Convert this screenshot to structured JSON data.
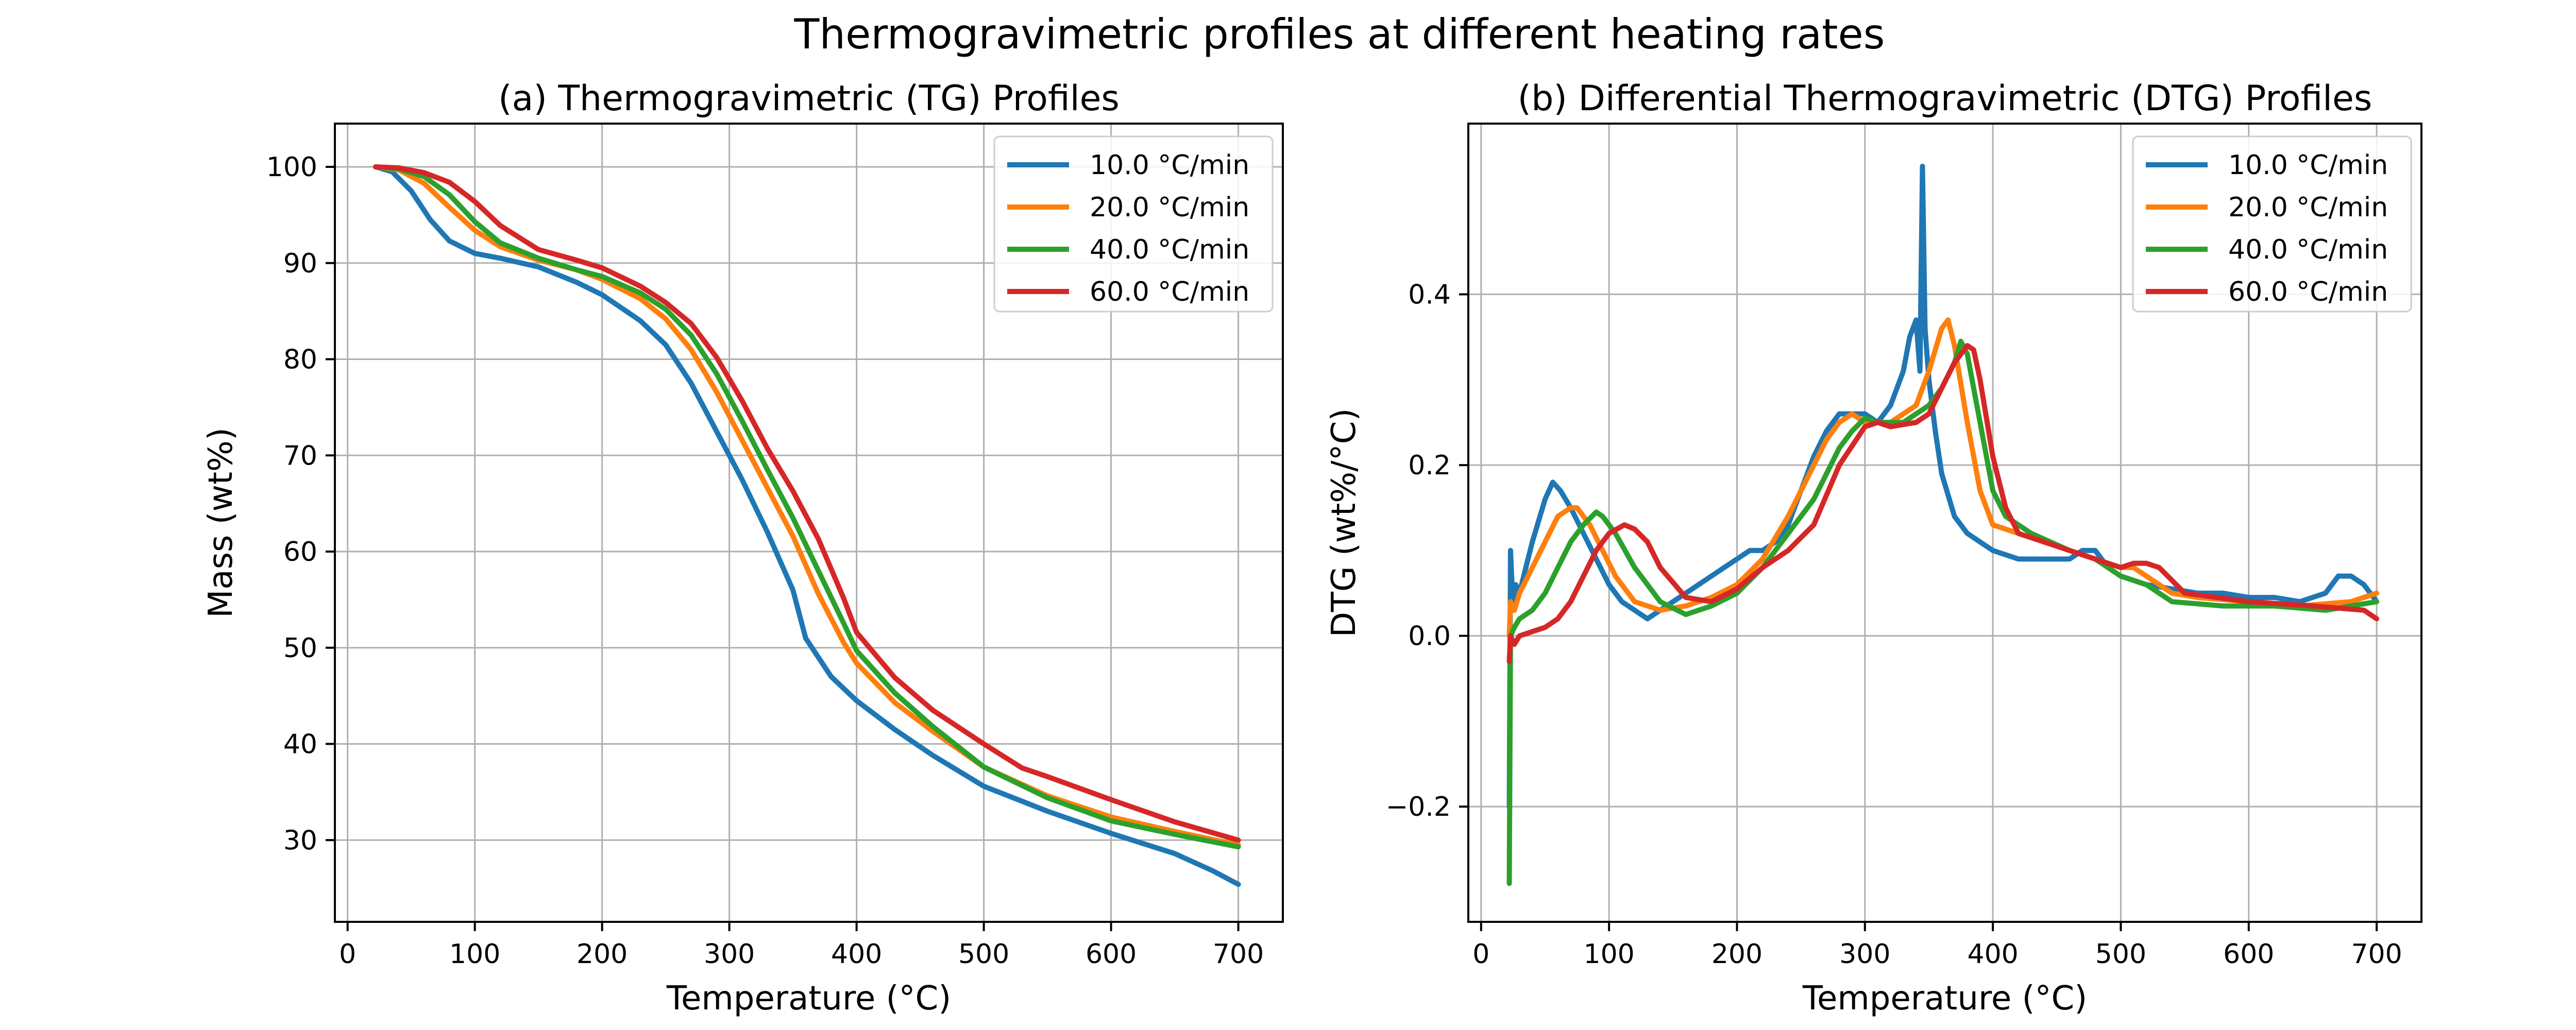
{
  "figure": {
    "suptitle": "Thermogravimetric profiles at different heating rates"
  },
  "colors": {
    "10.0": "#1f77b4",
    "20.0": "#ff7f0e",
    "40.0": "#2ca02c",
    "60.0": "#d62728",
    "grid": "#b0b0b0"
  },
  "chart_data": [
    {
      "type": "line",
      "title": "(a) Thermogravimetric (TG) Profiles",
      "xlabel": "Temperature (°C)",
      "ylabel": "Mass (wt%)",
      "xlim": [
        -10,
        735
      ],
      "ylim": [
        21.5,
        104.5
      ],
      "xticks": [
        0,
        100,
        200,
        300,
        400,
        500,
        600,
        700
      ],
      "yticks": [
        30,
        40,
        50,
        60,
        70,
        80,
        90,
        100
      ],
      "xtick_labels": [
        "0",
        "100",
        "200",
        "300",
        "400",
        "500",
        "600",
        "700"
      ],
      "ytick_labels": [
        "30",
        "40",
        "50",
        "60",
        "70",
        "80",
        "90",
        "100"
      ],
      "grid": true,
      "legend": "top-right",
      "series": [
        {
          "name": "10.0 °C/min",
          "x": [
            22,
            35,
            50,
            65,
            80,
            100,
            120,
            150,
            180,
            200,
            230,
            250,
            270,
            290,
            310,
            330,
            350,
            360,
            380,
            400,
            430,
            460,
            500,
            550,
            600,
            650,
            680,
            700
          ],
          "y": [
            100,
            99.5,
            97.5,
            94.5,
            92.3,
            91.0,
            90.5,
            89.6,
            88.0,
            86.7,
            84.0,
            81.5,
            77.5,
            72.5,
            67.5,
            62.0,
            56.0,
            51.0,
            47.0,
            44.5,
            41.5,
            38.8,
            35.6,
            33.0,
            30.7,
            28.6,
            26.8,
            25.4
          ]
        },
        {
          "name": "20.0 °C/min",
          "x": [
            22,
            40,
            60,
            80,
            100,
            120,
            150,
            180,
            200,
            230,
            250,
            270,
            290,
            310,
            330,
            350,
            370,
            390,
            400,
            430,
            460,
            500,
            550,
            600,
            650,
            700
          ],
          "y": [
            100,
            99.7,
            98.3,
            95.8,
            93.4,
            91.7,
            90.3,
            89.3,
            88.3,
            86.3,
            84.2,
            81.0,
            76.6,
            71.6,
            66.6,
            61.6,
            55.6,
            50.5,
            48.4,
            44.3,
            41.3,
            37.6,
            34.6,
            32.4,
            30.9,
            29.5
          ]
        },
        {
          "name": "40.0 °C/min",
          "x": [
            22,
            40,
            60,
            80,
            100,
            120,
            150,
            180,
            200,
            230,
            250,
            270,
            290,
            310,
            330,
            350,
            370,
            390,
            400,
            430,
            460,
            500,
            550,
            600,
            650,
            700
          ],
          "y": [
            100,
            99.8,
            99.0,
            97.1,
            94.3,
            92.1,
            90.5,
            89.3,
            88.6,
            86.9,
            85.2,
            82.5,
            78.5,
            73.6,
            68.5,
            63.5,
            58.0,
            52.5,
            49.7,
            45.3,
            41.8,
            37.6,
            34.4,
            32.0,
            30.6,
            29.3
          ]
        },
        {
          "name": "60.0 °C/min",
          "x": [
            22,
            40,
            60,
            80,
            100,
            120,
            150,
            180,
            200,
            230,
            250,
            270,
            290,
            310,
            330,
            350,
            370,
            390,
            400,
            430,
            460,
            500,
            530,
            550,
            600,
            650,
            700
          ],
          "y": [
            100,
            99.9,
            99.4,
            98.4,
            96.4,
            93.9,
            91.4,
            90.3,
            89.5,
            87.6,
            85.9,
            83.7,
            80.2,
            75.7,
            70.7,
            66.3,
            61.3,
            55.1,
            51.6,
            46.9,
            43.5,
            40.0,
            37.5,
            36.6,
            34.2,
            31.9,
            30.0
          ]
        }
      ]
    },
    {
      "type": "line",
      "title": "(b) Differential Thermogravimetric (DTG) Profiles",
      "xlabel": "Temperature (°C)",
      "ylabel": "DTG (wt%/°C)",
      "xlim": [
        -10,
        735
      ],
      "ylim": [
        -0.335,
        0.6
      ],
      "xticks": [
        0,
        100,
        200,
        300,
        400,
        500,
        600,
        700
      ],
      "yticks": [
        -0.2,
        0.0,
        0.2,
        0.4
      ],
      "xtick_labels": [
        "0",
        "100",
        "200",
        "300",
        "400",
        "500",
        "600",
        "700"
      ],
      "ytick_labels": [
        "−0.2",
        "0.0",
        "0.2",
        "0.4"
      ],
      "grid": true,
      "legend": "top-right",
      "series": [
        {
          "name": "10.0 °C/min",
          "x": [
            22,
            23,
            25,
            27,
            30,
            35,
            40,
            50,
            56,
            62,
            70,
            80,
            90,
            100,
            110,
            120,
            130,
            140,
            150,
            160,
            170,
            180,
            190,
            200,
            210,
            220,
            230,
            240,
            250,
            260,
            270,
            280,
            290,
            300,
            310,
            320,
            330,
            335,
            340,
            343,
            345,
            347,
            350,
            355,
            360,
            370,
            380,
            390,
            400,
            420,
            440,
            460,
            470,
            480,
            490,
            500,
            520,
            540,
            560,
            580,
            600,
            620,
            640,
            660,
            670,
            680,
            690,
            700
          ],
          "y": [
            -0.2,
            0.1,
            0.03,
            0.06,
            0.05,
            0.08,
            0.11,
            0.16,
            0.18,
            0.17,
            0.15,
            0.12,
            0.09,
            0.06,
            0.04,
            0.03,
            0.02,
            0.03,
            0.04,
            0.05,
            0.06,
            0.07,
            0.08,
            0.09,
            0.1,
            0.1,
            0.11,
            0.13,
            0.17,
            0.21,
            0.24,
            0.26,
            0.26,
            0.26,
            0.25,
            0.27,
            0.31,
            0.35,
            0.37,
            0.31,
            0.55,
            0.36,
            0.3,
            0.24,
            0.19,
            0.14,
            0.12,
            0.11,
            0.1,
            0.09,
            0.09,
            0.09,
            0.1,
            0.1,
            0.08,
            0.07,
            0.06,
            0.055,
            0.05,
            0.05,
            0.045,
            0.045,
            0.04,
            0.05,
            0.07,
            0.07,
            0.06,
            0.04
          ]
        },
        {
          "name": "20.0 °C/min",
          "x": [
            22,
            23,
            26,
            30,
            40,
            50,
            60,
            70,
            75,
            85,
            95,
            105,
            120,
            140,
            160,
            180,
            200,
            220,
            240,
            260,
            270,
            280,
            290,
            300,
            320,
            340,
            350,
            360,
            365,
            370,
            380,
            390,
            400,
            420,
            440,
            460,
            480,
            500,
            510,
            520,
            540,
            560,
            600,
            640,
            680,
            700
          ],
          "y": [
            0.0,
            0.04,
            0.03,
            0.05,
            0.08,
            0.11,
            0.14,
            0.15,
            0.15,
            0.13,
            0.1,
            0.07,
            0.04,
            0.03,
            0.035,
            0.045,
            0.06,
            0.09,
            0.14,
            0.2,
            0.23,
            0.25,
            0.26,
            0.25,
            0.25,
            0.27,
            0.31,
            0.36,
            0.37,
            0.34,
            0.25,
            0.17,
            0.13,
            0.12,
            0.11,
            0.1,
            0.09,
            0.08,
            0.08,
            0.07,
            0.05,
            0.045,
            0.04,
            0.035,
            0.04,
            0.05
          ]
        },
        {
          "name": "40.0 °C/min",
          "x": [
            22,
            23,
            26,
            30,
            40,
            50,
            60,
            70,
            80,
            90,
            95,
            105,
            120,
            140,
            160,
            180,
            200,
            220,
            240,
            260,
            280,
            290,
            300,
            310,
            330,
            350,
            360,
            370,
            375,
            380,
            390,
            400,
            410,
            430,
            460,
            480,
            500,
            520,
            540,
            580,
            620,
            660,
            700
          ],
          "y": [
            -0.29,
            0.0,
            0.01,
            0.02,
            0.03,
            0.05,
            0.08,
            0.11,
            0.13,
            0.145,
            0.14,
            0.12,
            0.08,
            0.04,
            0.025,
            0.035,
            0.05,
            0.08,
            0.12,
            0.16,
            0.22,
            0.24,
            0.255,
            0.25,
            0.25,
            0.27,
            0.29,
            0.32,
            0.345,
            0.33,
            0.25,
            0.17,
            0.14,
            0.12,
            0.1,
            0.09,
            0.07,
            0.06,
            0.04,
            0.035,
            0.035,
            0.03,
            0.04
          ]
        },
        {
          "name": "60.0 °C/min",
          "x": [
            22,
            23,
            26,
            30,
            40,
            50,
            60,
            70,
            80,
            90,
            100,
            112,
            120,
            130,
            140,
            160,
            180,
            200,
            220,
            240,
            260,
            280,
            300,
            310,
            320,
            340,
            350,
            360,
            370,
            380,
            385,
            390,
            400,
            410,
            420,
            440,
            460,
            480,
            500,
            510,
            520,
            530,
            550,
            600,
            650,
            690,
            700
          ],
          "y": [
            -0.03,
            0.0,
            -0.01,
            0.0,
            0.005,
            0.01,
            0.02,
            0.04,
            0.07,
            0.1,
            0.12,
            0.13,
            0.125,
            0.11,
            0.08,
            0.045,
            0.04,
            0.055,
            0.08,
            0.1,
            0.13,
            0.2,
            0.245,
            0.25,
            0.245,
            0.25,
            0.26,
            0.29,
            0.32,
            0.34,
            0.335,
            0.3,
            0.21,
            0.15,
            0.12,
            0.11,
            0.1,
            0.09,
            0.08,
            0.085,
            0.085,
            0.08,
            0.05,
            0.04,
            0.035,
            0.03,
            0.02
          ]
        }
      ]
    }
  ]
}
